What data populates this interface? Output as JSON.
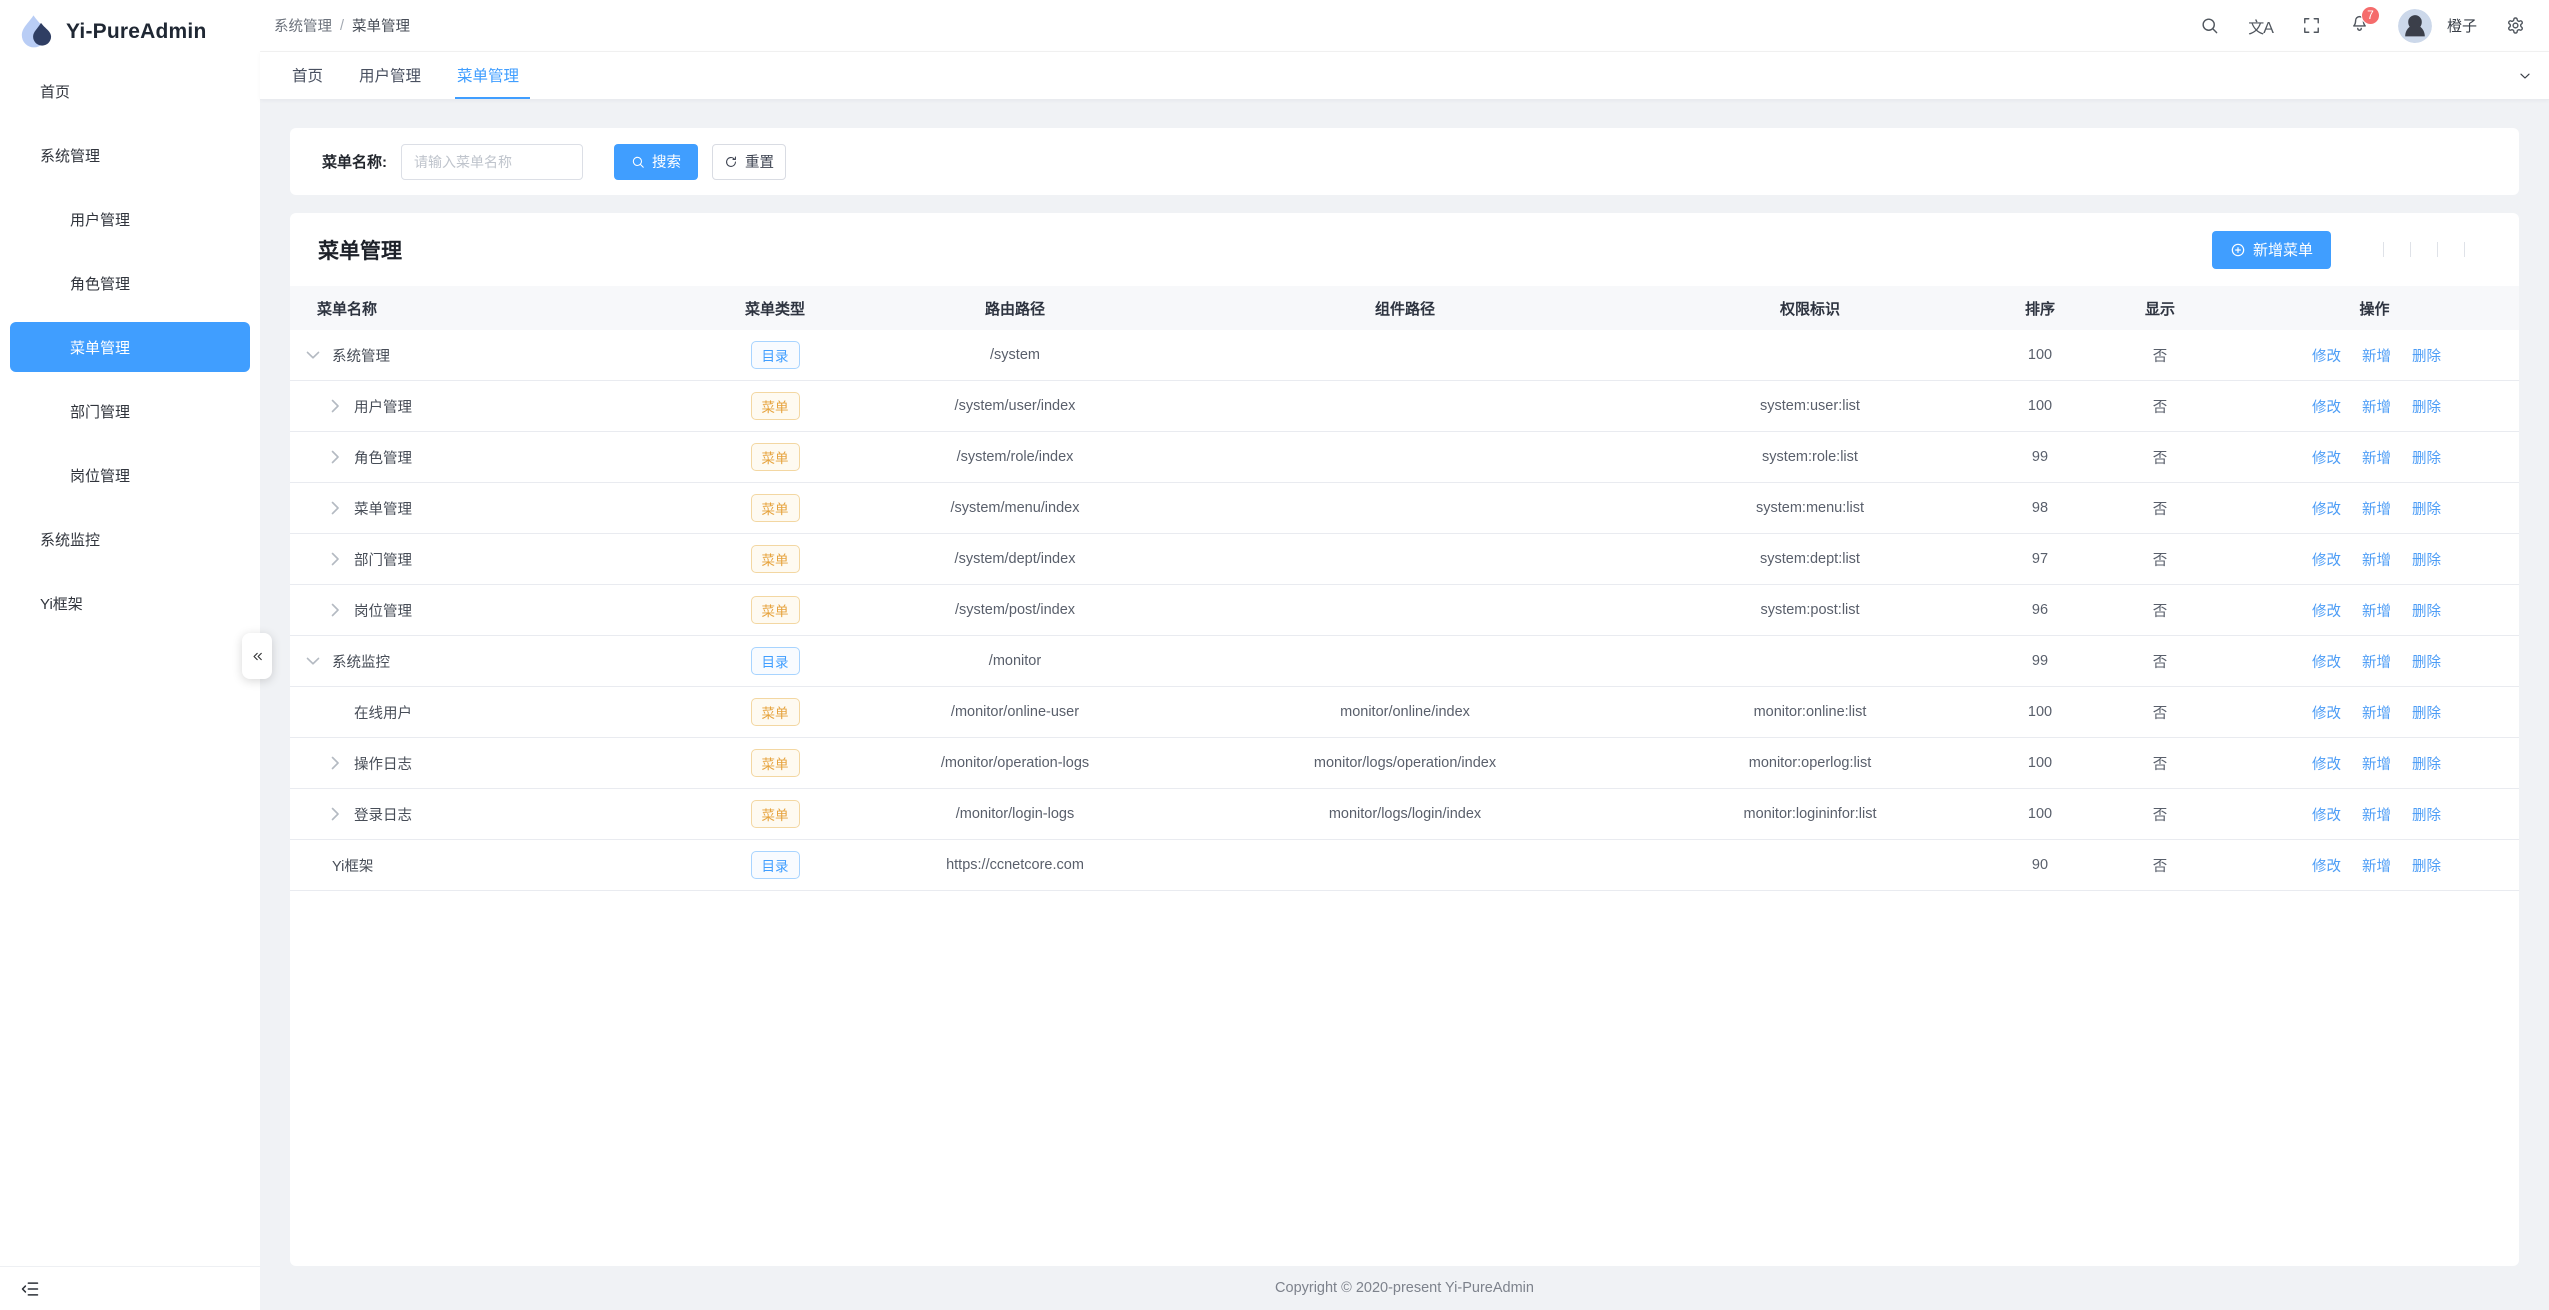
{
  "app": {
    "title": "Yi-PureAdmin"
  },
  "colors": {
    "primary": "#409eff",
    "badge": "#f56c6c",
    "warning": "#e6a23c",
    "content_bg": "#f0f2f5"
  },
  "sidebar": {
    "logo_icon": "droplet-logo-icon",
    "title": "Yi-PureAdmin",
    "items": [
      {
        "id": "home",
        "icon": "home-icon",
        "label": "首页",
        "level": 0
      },
      {
        "id": "system",
        "icon": "gear-icon",
        "label": "系统管理",
        "level": 0,
        "chevron": "up"
      },
      {
        "id": "user",
        "icon": "user-lock-icon",
        "label": "用户管理",
        "level": 1
      },
      {
        "id": "role",
        "icon": "user-filled-icon",
        "label": "角色管理",
        "level": 1
      },
      {
        "id": "menu",
        "icon": "grid-icon",
        "label": "菜单管理",
        "level": 1,
        "active": true
      },
      {
        "id": "dept",
        "icon": "tree-icon",
        "label": "部门管理",
        "level": 1
      },
      {
        "id": "post",
        "icon": "share-nodes-icon",
        "label": "岗位管理",
        "level": 1
      },
      {
        "id": "monitor",
        "icon": "monitor-icon",
        "label": "系统监控",
        "level": 0,
        "chevron": "down"
      },
      {
        "id": "yi",
        "icon": "at-icon",
        "label": "Yi框架",
        "level": 0
      }
    ],
    "collapse_icon": "menu-fold-icon",
    "toggle_icon": "double-left-icon"
  },
  "header": {
    "breadcrumb": {
      "parent": "系统管理",
      "separator": "/",
      "current": "菜单管理"
    },
    "tools": [
      "search-icon",
      "translate-icon",
      "fullscreen-icon"
    ],
    "bell_icon": "bell-icon",
    "notification_count": "7",
    "username": "橙子",
    "settings_icon": "gear-icon"
  },
  "tabs": {
    "items": [
      {
        "id": "home",
        "label": "首页"
      },
      {
        "id": "user",
        "label": "用户管理"
      },
      {
        "id": "menu",
        "label": "菜单管理",
        "active": true,
        "closable": true
      }
    ],
    "close_icon": "close-icon",
    "more_icon": "chevron-down-icon"
  },
  "filter": {
    "label": "菜单名称:",
    "placeholder": "请输入菜单名称",
    "search_label": "搜索",
    "search_icon": "search-icon",
    "reset_label": "重置",
    "reset_icon": "refresh-icon"
  },
  "panel": {
    "title": "菜单管理",
    "add_label": "新增菜单",
    "add_icon": "plus-circle-icon",
    "toolbar_icons": [
      "arrow-bar-icon",
      "refresh-icon",
      "density-icon",
      "gear-icon",
      "fullscreen-icon"
    ]
  },
  "table": {
    "columns": [
      "菜单名称",
      "菜单类型",
      "路由路径",
      "组件路径",
      "权限标识",
      "排序",
      "显示",
      "操作"
    ],
    "tag_labels": {
      "dir": "目录",
      "menu": "菜单"
    },
    "actions": [
      {
        "icon": "edit-icon",
        "label": "修改"
      },
      {
        "icon": "plus-circle-icon",
        "label": "新增"
      },
      {
        "icon": "trash-icon",
        "label": "删除"
      }
    ],
    "rows": [
      {
        "name": "系统管理",
        "icon": "gear-icon",
        "level": 0,
        "expand": "down",
        "type": "dir",
        "route": "/system",
        "component": "",
        "perm": "",
        "sort": "100",
        "visible": "否"
      },
      {
        "name": "用户管理",
        "icon": "user-lock-icon",
        "level": 1,
        "expand": "right",
        "type": "menu",
        "route": "/system/user/index",
        "component": "",
        "perm": "system:user:list",
        "sort": "100",
        "visible": "否"
      },
      {
        "name": "角色管理",
        "icon": "user-filled-icon",
        "level": 1,
        "expand": "right",
        "type": "menu",
        "route": "/system/role/index",
        "component": "",
        "perm": "system:role:list",
        "sort": "99",
        "visible": "否"
      },
      {
        "name": "菜单管理",
        "icon": "grid-icon",
        "level": 1,
        "expand": "right",
        "type": "menu",
        "route": "/system/menu/index",
        "component": "",
        "perm": "system:menu:list",
        "sort": "98",
        "visible": "否"
      },
      {
        "name": "部门管理",
        "icon": "tree-icon",
        "level": 1,
        "expand": "right",
        "type": "menu",
        "route": "/system/dept/index",
        "component": "",
        "perm": "system:dept:list",
        "sort": "97",
        "visible": "否"
      },
      {
        "name": "岗位管理",
        "icon": "share-nodes-icon",
        "level": 1,
        "expand": "right",
        "type": "menu",
        "route": "/system/post/index",
        "component": "",
        "perm": "system:post:list",
        "sort": "96",
        "visible": "否"
      },
      {
        "name": "系统监控",
        "icon": "monitor-icon",
        "level": 0,
        "expand": "down",
        "type": "dir",
        "route": "/monitor",
        "component": "",
        "perm": "",
        "sort": "99",
        "visible": "否"
      },
      {
        "name": "在线用户",
        "icon": "user-headset-icon",
        "level": 1,
        "expand": "none",
        "type": "menu",
        "route": "/monitor/online-user",
        "component": "monitor/online/index",
        "perm": "monitor:online:list",
        "sort": "100",
        "visible": "否"
      },
      {
        "name": "操作日志",
        "icon": "clock-icon",
        "level": 1,
        "expand": "right",
        "type": "menu",
        "route": "/monitor/operation-logs",
        "component": "monitor/logs/operation/index",
        "perm": "monitor:operlog:list",
        "sort": "100",
        "visible": "否"
      },
      {
        "name": "登录日志",
        "icon": "window-icon",
        "level": 1,
        "expand": "right",
        "type": "menu",
        "route": "/monitor/login-logs",
        "component": "monitor/logs/login/index",
        "perm": "monitor:logininfor:list",
        "sort": "100",
        "visible": "否"
      },
      {
        "name": "Yi框架",
        "icon": "at-icon",
        "level": 0,
        "expand": "none",
        "type": "dir",
        "route": "https://ccnetcore.com",
        "component": "",
        "perm": "",
        "sort": "90",
        "visible": "否"
      }
    ]
  },
  "footer": {
    "copyright": "Copyright © 2020-present Yi-PureAdmin"
  }
}
